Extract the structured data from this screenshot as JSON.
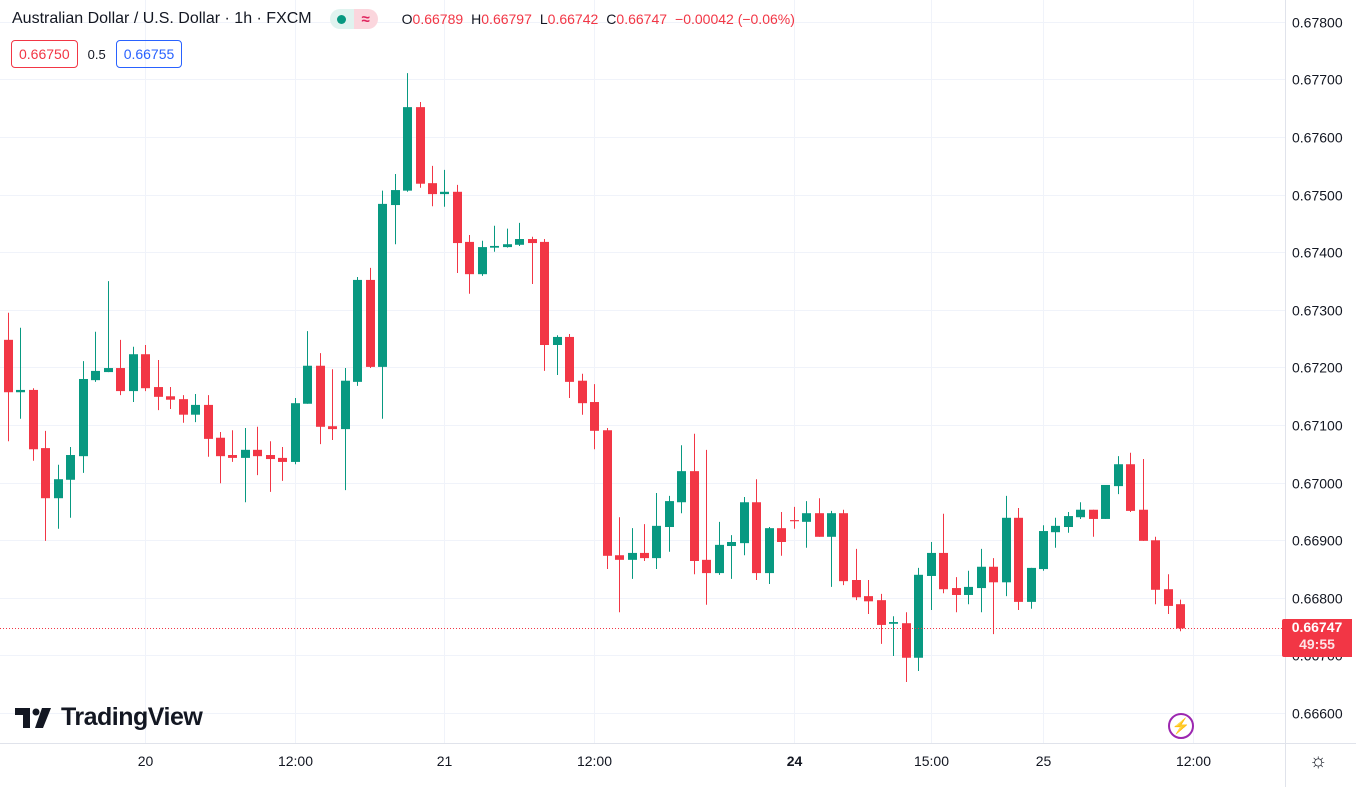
{
  "header": {
    "title": "Australian Dollar / U.S. Dollar · 1h · FXCM",
    "market_status_icon": "green-dot-icon",
    "indicator_icon": "approx-wave-icon",
    "ohlc": {
      "o_label": "O",
      "o_value": "0.66789",
      "h_label": "H",
      "h_value": "0.66797",
      "l_label": "L",
      "l_value": "0.66742",
      "c_label": "C",
      "c_value": "0.66747",
      "change": "−0.00042 (−0.06%)"
    }
  },
  "trade": {
    "sell_price": "0.66750",
    "spread": "0.5",
    "buy_price": "0.66755"
  },
  "last_price": {
    "price": "0.66747",
    "countdown": "49:55"
  },
  "branding": {
    "logo_text": "TradingView"
  },
  "icons": {
    "bolt": "lightning-icon",
    "settings": "gear-icon"
  },
  "colors": {
    "up": "#089981",
    "down": "#f23645",
    "grid": "#f0f3fa",
    "buy": "#2962ff",
    "accent_purple": "#9c27b0"
  },
  "chart_data": {
    "type": "candlestick",
    "title": "Australian Dollar / U.S. Dollar · 1h · FXCM",
    "timeframe": "1h",
    "ylim": [
      0.66548,
      0.67838
    ],
    "y_ticks": [
      "0.67800",
      "0.67700",
      "0.67600",
      "0.67500",
      "0.67400",
      "0.67300",
      "0.67200",
      "0.67100",
      "0.67000",
      "0.66900",
      "0.66800",
      "0.66700",
      "0.66600"
    ],
    "x_ticks": [
      {
        "label": "20",
        "bar": 12,
        "bold": false
      },
      {
        "label": "12:00",
        "bar": 24,
        "bold": false
      },
      {
        "label": "21",
        "bar": 36,
        "bold": false
      },
      {
        "label": "12:00",
        "bar": 48,
        "bold": false
      },
      {
        "label": "24",
        "bar": 64,
        "bold": true
      },
      {
        "label": "15:00",
        "bar": 75,
        "bold": false
      },
      {
        "label": "25",
        "bar": 84,
        "bold": false
      },
      {
        "label": "12:00",
        "bar": 96,
        "bold": false
      }
    ],
    "grid": true,
    "last_price": 0.66747,
    "ohlc_columns": [
      "open",
      "high",
      "low",
      "close"
    ],
    "candles": [
      [
        0.67248,
        0.67295,
        0.67072,
        0.67157
      ],
      [
        0.67157,
        0.67269,
        0.67111,
        0.67161
      ],
      [
        0.67161,
        0.67164,
        0.67038,
        0.67058
      ],
      [
        0.6706,
        0.6709,
        0.66899,
        0.66973
      ],
      [
        0.66973,
        0.67031,
        0.6692,
        0.67006
      ],
      [
        0.67005,
        0.67062,
        0.66939,
        0.67048
      ],
      [
        0.67046,
        0.67211,
        0.67017,
        0.6718
      ],
      [
        0.67178,
        0.67262,
        0.67175,
        0.67194
      ],
      [
        0.67192,
        0.6735,
        0.67192,
        0.67199
      ],
      [
        0.67199,
        0.67248,
        0.67152,
        0.67159
      ],
      [
        0.67159,
        0.67236,
        0.6714,
        0.67223
      ],
      [
        0.67223,
        0.67239,
        0.67159,
        0.67164
      ],
      [
        0.67166,
        0.67213,
        0.67126,
        0.67149
      ],
      [
        0.6715,
        0.67166,
        0.67128,
        0.67144
      ],
      [
        0.67145,
        0.67152,
        0.67104,
        0.67118
      ],
      [
        0.67118,
        0.67154,
        0.67105,
        0.67135
      ],
      [
        0.67135,
        0.67152,
        0.67045,
        0.67076
      ],
      [
        0.67078,
        0.67088,
        0.66999,
        0.67046
      ],
      [
        0.67048,
        0.67091,
        0.67036,
        0.67043
      ],
      [
        0.67043,
        0.67095,
        0.66966,
        0.67057
      ],
      [
        0.67057,
        0.67097,
        0.67013,
        0.67046
      ],
      [
        0.67048,
        0.67072,
        0.66984,
        0.67041
      ],
      [
        0.67043,
        0.67062,
        0.67003,
        0.67036
      ],
      [
        0.67036,
        0.67147,
        0.67032,
        0.67138
      ],
      [
        0.67137,
        0.67263,
        0.67137,
        0.67203
      ],
      [
        0.67203,
        0.67225,
        0.67067,
        0.67097
      ],
      [
        0.67098,
        0.67197,
        0.67074,
        0.67093
      ],
      [
        0.67093,
        0.67199,
        0.66987,
        0.67177
      ],
      [
        0.67175,
        0.67357,
        0.67168,
        0.67352
      ],
      [
        0.67352,
        0.67373,
        0.67199,
        0.67201
      ],
      [
        0.67201,
        0.67507,
        0.67111,
        0.67484
      ],
      [
        0.67482,
        0.67536,
        0.67414,
        0.67508
      ],
      [
        0.67507,
        0.67711,
        0.67505,
        0.67652
      ],
      [
        0.67652,
        0.67661,
        0.67512,
        0.67519
      ],
      [
        0.6752,
        0.6755,
        0.6748,
        0.67501
      ],
      [
        0.67501,
        0.67543,
        0.67479,
        0.67505
      ],
      [
        0.67505,
        0.67517,
        0.67364,
        0.67416
      ],
      [
        0.67418,
        0.6743,
        0.67328,
        0.67362
      ],
      [
        0.67362,
        0.6742,
        0.67359,
        0.67409
      ],
      [
        0.67408,
        0.67446,
        0.67401,
        0.67411
      ],
      [
        0.67409,
        0.67441,
        0.67408,
        0.67414
      ],
      [
        0.67413,
        0.67451,
        0.67411,
        0.67423
      ],
      [
        0.67423,
        0.67427,
        0.67345,
        0.67416
      ],
      [
        0.67418,
        0.67423,
        0.67194,
        0.67239
      ],
      [
        0.67239,
        0.67256,
        0.67187,
        0.67253
      ],
      [
        0.67253,
        0.67258,
        0.67147,
        0.67175
      ],
      [
        0.67177,
        0.67189,
        0.67118,
        0.67138
      ],
      [
        0.6714,
        0.67171,
        0.67058,
        0.6709
      ],
      [
        0.67091,
        0.67095,
        0.6685,
        0.66873
      ],
      [
        0.66874,
        0.6694,
        0.66775,
        0.66866
      ],
      [
        0.66866,
        0.66921,
        0.66833,
        0.66878
      ],
      [
        0.66878,
        0.66928,
        0.66864,
        0.66869
      ],
      [
        0.66869,
        0.66982,
        0.6685,
        0.66925
      ],
      [
        0.66923,
        0.66977,
        0.6688,
        0.66968
      ],
      [
        0.66966,
        0.67065,
        0.66947,
        0.6702
      ],
      [
        0.6702,
        0.67085,
        0.66841,
        0.66864
      ],
      [
        0.66866,
        0.67057,
        0.66788,
        0.66843
      ],
      [
        0.66843,
        0.66932,
        0.6684,
        0.66892
      ],
      [
        0.6689,
        0.66909,
        0.66833,
        0.66897
      ],
      [
        0.66895,
        0.66975,
        0.66874,
        0.66966
      ],
      [
        0.66966,
        0.67006,
        0.66831,
        0.66843
      ],
      [
        0.66843,
        0.66923,
        0.66824,
        0.66921
      ],
      [
        0.66921,
        0.66949,
        0.66873,
        0.66897
      ],
      [
        0.66935,
        0.66958,
        0.6692,
        0.66933
      ],
      [
        0.66932,
        0.66968,
        0.66887,
        0.66947
      ],
      [
        0.66947,
        0.66973,
        0.66906,
        0.66906
      ],
      [
        0.66906,
        0.66951,
        0.66819,
        0.66947
      ],
      [
        0.66947,
        0.66953,
        0.66822,
        0.66829
      ],
      [
        0.66831,
        0.66885,
        0.66796,
        0.66801
      ],
      [
        0.66803,
        0.66831,
        0.66772,
        0.66794
      ],
      [
        0.66796,
        0.66807,
        0.6672,
        0.66753
      ],
      [
        0.66755,
        0.66768,
        0.66699,
        0.66758
      ],
      [
        0.66756,
        0.66775,
        0.66654,
        0.66696
      ],
      [
        0.66696,
        0.66852,
        0.66673,
        0.6684
      ],
      [
        0.66838,
        0.66897,
        0.66779,
        0.66878
      ],
      [
        0.66878,
        0.66946,
        0.66808,
        0.66815
      ],
      [
        0.66817,
        0.66836,
        0.66775,
        0.66805
      ],
      [
        0.66805,
        0.66847,
        0.66789,
        0.66819
      ],
      [
        0.66817,
        0.66885,
        0.66775,
        0.66854
      ],
      [
        0.66854,
        0.66869,
        0.66737,
        0.66827
      ],
      [
        0.66827,
        0.66977,
        0.66803,
        0.66939
      ],
      [
        0.66939,
        0.66956,
        0.66779,
        0.66793
      ],
      [
        0.66793,
        0.66852,
        0.66781,
        0.66852
      ],
      [
        0.6685,
        0.66926,
        0.66847,
        0.66916
      ],
      [
        0.66914,
        0.66939,
        0.66887,
        0.66925
      ],
      [
        0.66923,
        0.66949,
        0.66913,
        0.66942
      ],
      [
        0.6694,
        0.66966,
        0.66937,
        0.66953
      ],
      [
        0.66953,
        0.66953,
        0.66906,
        0.66937
      ],
      [
        0.66937,
        0.66996,
        0.66937,
        0.66996
      ],
      [
        0.66994,
        0.67046,
        0.6698,
        0.67032
      ],
      [
        0.67032,
        0.67052,
        0.66949,
        0.66951
      ],
      [
        0.66953,
        0.67041,
        0.66899,
        0.66899
      ],
      [
        0.669,
        0.66906,
        0.66789,
        0.66814
      ],
      [
        0.66815,
        0.66841,
        0.66772,
        0.66786
      ],
      [
        0.66789,
        0.66797,
        0.66742,
        0.66747
      ]
    ]
  }
}
